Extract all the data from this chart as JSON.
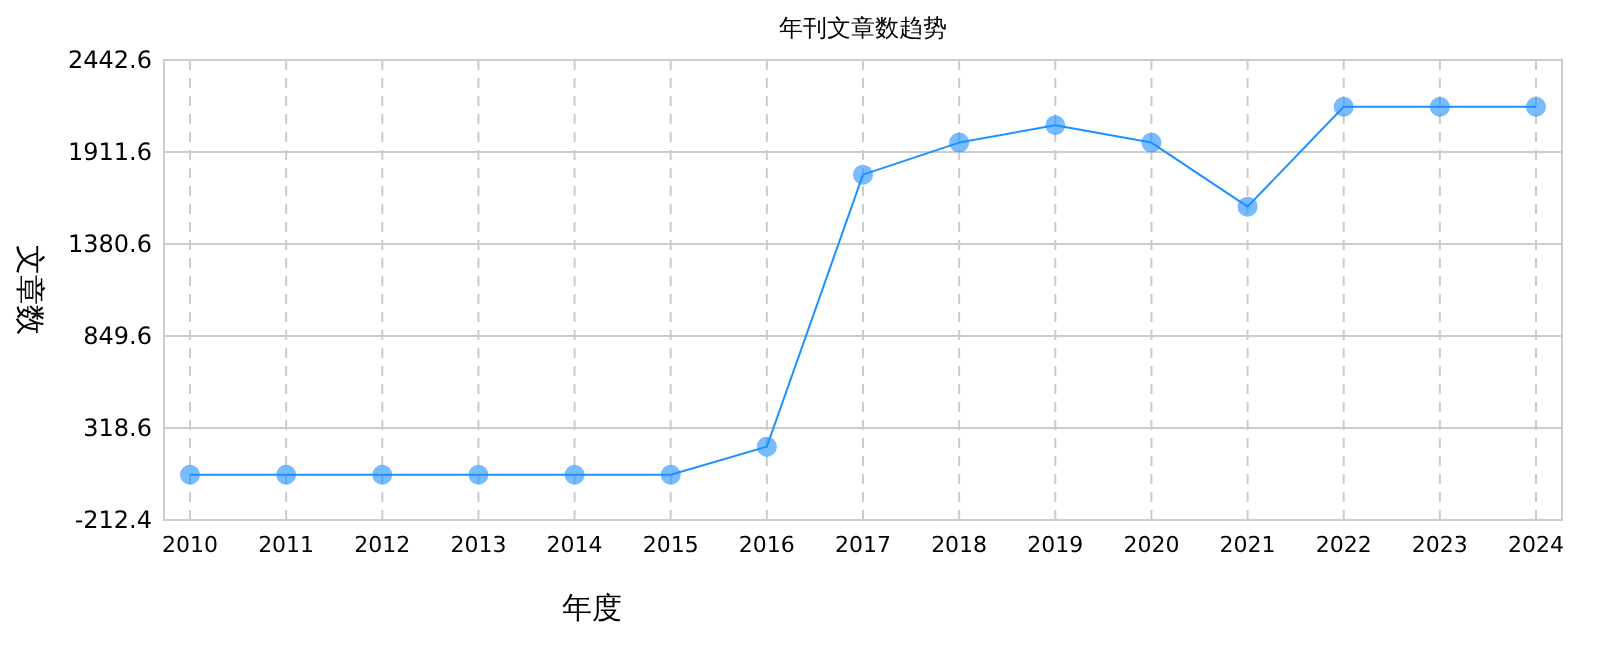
{
  "chart_data": {
    "type": "line",
    "title": "年刊文章数趋势",
    "xlabel": "年度",
    "ylabel": "文章数",
    "categories": [
      "2010",
      "2011",
      "2012",
      "2013",
      "2014",
      "2015",
      "2016",
      "2017",
      "2018",
      "2019",
      "2020",
      "2021",
      "2022",
      "2023",
      "2024"
    ],
    "series": [
      {
        "color": "#1e90ff",
        "values": [
          49,
          49,
          49,
          49,
          49,
          49,
          211,
          1781,
          1966,
          2066,
          1966,
          1596,
          2173,
          2173,
          2173
        ]
      }
    ],
    "ylim": [
      -212.4,
      2442.6
    ],
    "yticks": [
      -212.4,
      318.6,
      849.6,
      1380.6,
      1911.6,
      2442.6
    ],
    "grid": true,
    "marker": "circle",
    "line_style": "solid"
  }
}
